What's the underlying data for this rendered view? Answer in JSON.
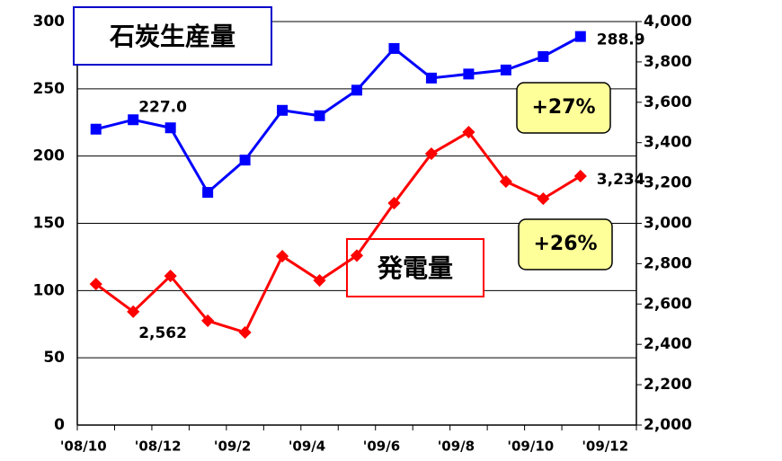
{
  "chart_data": {
    "type": "line",
    "categories": [
      "'08/10",
      null,
      "'08/12",
      null,
      "'09/2",
      null,
      "'09/4",
      null,
      "'09/6",
      null,
      "'09/8",
      null,
      "'09/10",
      null,
      "'09/12"
    ],
    "series": [
      {
        "name": "石炭生産量",
        "color": "#0000ff",
        "axis": "y",
        "values": [
          220,
          227,
          221,
          173,
          197,
          234,
          230,
          249,
          280,
          258,
          261,
          264,
          274,
          288.9,
          null
        ],
        "value_labels": [
          null,
          "227.0",
          null,
          null,
          null,
          null,
          null,
          null,
          null,
          null,
          null,
          null,
          null,
          "288.9",
          null
        ]
      },
      {
        "name": "発電量",
        "color": "#ff0000",
        "axis": "y2",
        "values": [
          2699,
          2562,
          2739,
          2517,
          2459,
          2837,
          2717,
          2840,
          3100,
          3345,
          3452,
          3207,
          3122,
          3234,
          null
        ],
        "value_labels": [
          null,
          "2,562",
          null,
          null,
          null,
          null,
          null,
          null,
          null,
          null,
          null,
          null,
          null,
          "3,234",
          null
        ]
      }
    ],
    "ylim": [
      0,
      300
    ],
    "yticks": [
      0,
      50,
      100,
      150,
      200,
      250,
      300
    ],
    "y2lim": [
      2000,
      4000
    ],
    "y2ticks": [
      {
        "value": 2000,
        "label": "2,000"
      },
      {
        "value": 2200,
        "label": "2,200"
      },
      {
        "value": 2400,
        "label": "2,400"
      },
      {
        "value": 2600,
        "label": "2,600"
      },
      {
        "value": 2800,
        "label": "2,800"
      },
      {
        "value": 3000,
        "label": "3,000"
      },
      {
        "value": 3200,
        "label": "3,200"
      },
      {
        "value": 3400,
        "label": "3,400"
      },
      {
        "value": 3600,
        "label": "3,600"
      },
      {
        "value": 3800,
        "label": "3,800"
      },
      {
        "value": 4000,
        "label": "4,000"
      }
    ],
    "grid": true,
    "annotations": [
      "+27%",
      "+26%"
    ]
  }
}
